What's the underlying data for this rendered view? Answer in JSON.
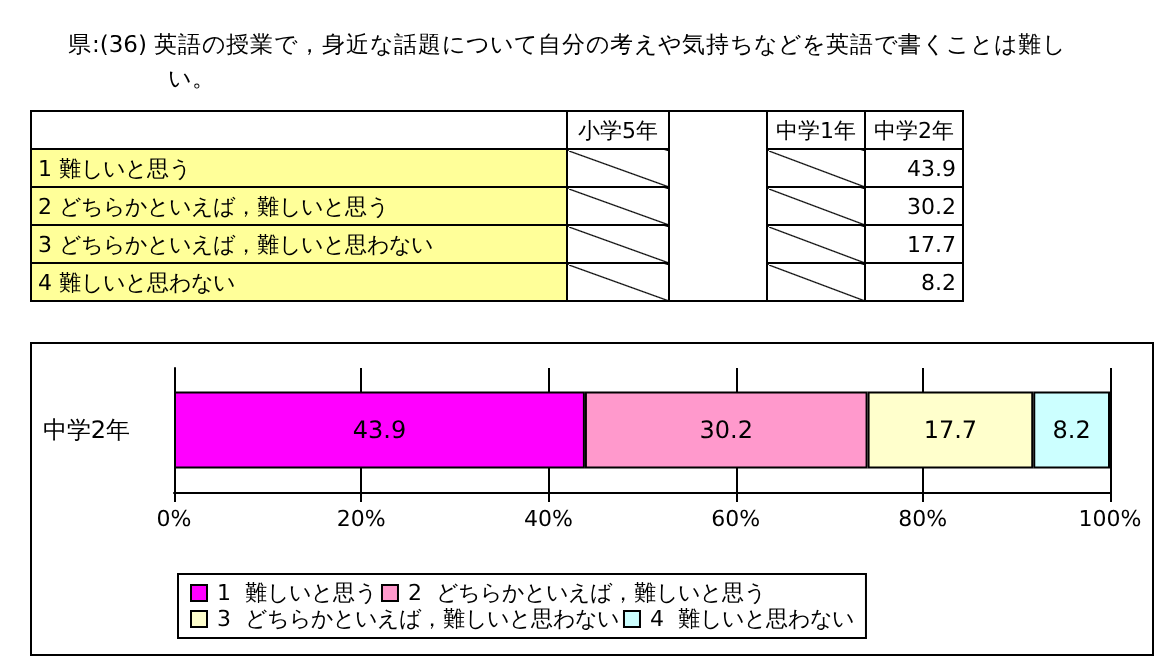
{
  "chart_data": [
    {
      "type": "other",
      "title": "県:(36) 英語の授業で，身近な話題について自分の考えや気持ちなどを英語で書くことは難しい。",
      "categories": [
        "小学5年",
        null,
        "中学1年",
        "中学2年"
      ],
      "data_labels": true,
      "series": [
        {
          "name": "1  難しいと思う",
          "values": [
            null,
            null,
            null,
            43.9
          ]
        },
        {
          "name": "2  どちらかといえば，難しいと思う",
          "values": [
            null,
            null,
            null,
            30.2
          ]
        },
        {
          "name": "3  どちらかといえば，難しいと思わない",
          "values": [
            null,
            null,
            null,
            17.7
          ]
        },
        {
          "name": "4  難しいと思わない",
          "values": [
            null,
            null,
            null,
            8.2
          ]
        }
      ]
    },
    {
      "type": "bar",
      "orientation": "horizontal",
      "stacked": true,
      "categories": [
        "中学2年"
      ],
      "xlim": [
        0,
        100
      ],
      "xticks": [
        {
          "value": 0,
          "label": "0%"
        },
        {
          "value": 20,
          "label": "20%"
        },
        {
          "value": 40,
          "label": "40%"
        },
        {
          "value": 60,
          "label": "60%"
        },
        {
          "value": 80,
          "label": "80%"
        },
        {
          "value": 100,
          "label": "100%"
        }
      ],
      "grid": "x",
      "legend": "bottom",
      "data_labels": true,
      "series": [
        {
          "name": "1  難しいと思う",
          "color": "#ff00ff",
          "values": [
            43.9
          ]
        },
        {
          "name": "2  どちらかといえば，難しいと思う",
          "color": "#ff99cc",
          "values": [
            30.2
          ]
        },
        {
          "name": "3  どちらかといえば，難しいと思わない",
          "color": "#ffffcc",
          "values": [
            17.7
          ]
        },
        {
          "name": "4  難しいと思わない",
          "color": "#ccffff",
          "values": [
            8.2
          ]
        }
      ]
    }
  ]
}
